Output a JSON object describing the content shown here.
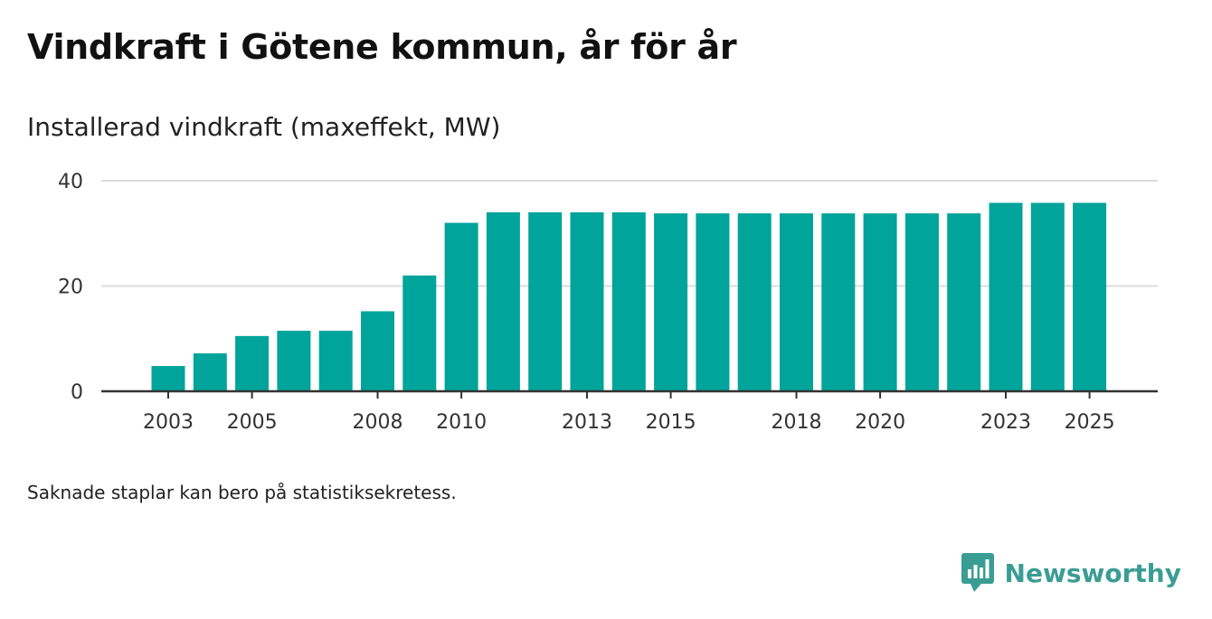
{
  "title": "Vindkraft i Götene kommun, år för år",
  "subtitle": "Installerad vindkraft (maxeffekt, MW)",
  "note": "Saknade staplar kan bero på statistiksekretess.",
  "brand": {
    "name": "Newsworthy",
    "icon": "newsworthy-logo-icon"
  },
  "colors": {
    "bar": "#00a49a",
    "grid": "#dcdcdc",
    "axis": "#333333",
    "brand": "#3a9d93"
  },
  "chart_data": {
    "type": "bar",
    "categories": [
      "2003",
      "2004",
      "2005",
      "2006",
      "2007",
      "2008",
      "2009",
      "2010",
      "2011",
      "2012",
      "2013",
      "2014",
      "2015",
      "2016",
      "2017",
      "2018",
      "2019",
      "2020",
      "2021",
      "2022",
      "2023",
      "2024",
      "2025"
    ],
    "values": [
      4.8,
      7.2,
      10.5,
      11.5,
      11.5,
      15.2,
      22,
      32,
      34,
      34,
      34,
      34,
      33.8,
      33.8,
      33.8,
      33.8,
      33.8,
      33.8,
      33.8,
      33.8,
      35.8,
      35.8,
      35.8
    ],
    "xticks": [
      "2003",
      "2005",
      "2008",
      "2010",
      "2013",
      "2015",
      "2018",
      "2020",
      "2023",
      "2025"
    ],
    "yticks": [
      0,
      20,
      40
    ],
    "ylim": [
      0,
      40
    ],
    "xlabel": "",
    "ylabel": "Installerad vindkraft (maxeffekt, MW)",
    "grid": true
  }
}
